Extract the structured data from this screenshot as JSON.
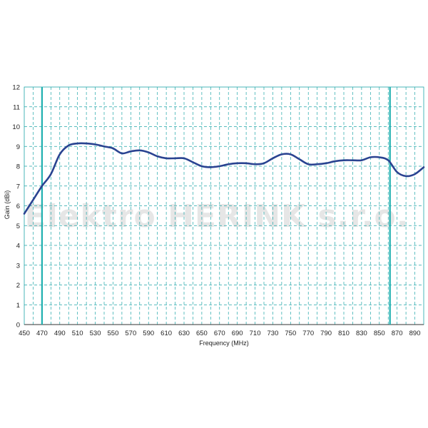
{
  "chart_data": {
    "type": "line",
    "xlabel": "Frequency (MHz)",
    "ylabel": "Gain (dBi)",
    "xlim": [
      450,
      900
    ],
    "ylim": [
      0,
      12
    ],
    "x_ticks": [
      450,
      470,
      490,
      510,
      530,
      550,
      570,
      590,
      610,
      630,
      650,
      670,
      690,
      710,
      730,
      750,
      770,
      790,
      810,
      830,
      850,
      870,
      890
    ],
    "y_ticks": [
      0,
      1,
      2,
      3,
      4,
      5,
      6,
      7,
      8,
      9,
      10,
      11,
      12
    ],
    "grid": true,
    "grid_style": "dashed",
    "watermark": "Elektro HERINK s.r.o.",
    "markers": [
      {
        "x": 470,
        "color": "#1fb0b0"
      },
      {
        "x": 862,
        "color": "#1fb0b0"
      }
    ],
    "series": [
      {
        "color": "#2a4391",
        "x": [
          450,
          460,
          470,
          480,
          490,
          500,
          510,
          520,
          530,
          540,
          550,
          560,
          570,
          580,
          590,
          600,
          610,
          620,
          630,
          640,
          650,
          660,
          670,
          680,
          690,
          700,
          710,
          720,
          730,
          740,
          750,
          760,
          770,
          780,
          790,
          800,
          810,
          820,
          830,
          840,
          850,
          860,
          870,
          880,
          890,
          900
        ],
        "y": [
          5.6,
          6.3,
          7.0,
          7.6,
          8.6,
          9.05,
          9.15,
          9.15,
          9.1,
          9.0,
          8.9,
          8.65,
          8.75,
          8.8,
          8.7,
          8.5,
          8.4,
          8.4,
          8.4,
          8.2,
          8.0,
          7.95,
          8.0,
          8.1,
          8.15,
          8.15,
          8.1,
          8.15,
          8.4,
          8.6,
          8.6,
          8.35,
          8.1,
          8.1,
          8.15,
          8.25,
          8.3,
          8.3,
          8.3,
          8.45,
          8.45,
          8.3,
          7.7,
          7.5,
          7.6,
          7.95
        ]
      }
    ]
  }
}
